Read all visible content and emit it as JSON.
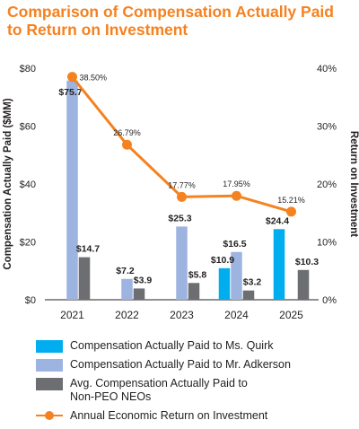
{
  "title_line1": "Comparison of Compensation Actually Paid",
  "title_line2": "to Return on Investment",
  "chart_data": {
    "type": "bar",
    "categories": [
      "2021",
      "2022",
      "2023",
      "2024",
      "2025"
    ],
    "ylabel": "Compensation Actually Paid ($MM)",
    "y2label": "Return on Investment",
    "ylim": [
      0,
      80
    ],
    "y_ticks": [
      "$0",
      "$20",
      "$40",
      "$60",
      "$80"
    ],
    "y2lim": [
      0,
      40
    ],
    "y2_ticks": [
      "0%",
      "10%",
      "20%",
      "30%",
      "40%"
    ],
    "grid": false,
    "legend_position": "bottom",
    "series": [
      {
        "name": "Compensation Actually Paid to Ms. Quirk",
        "kind": "bar",
        "color": "#00aeef",
        "values": [
          null,
          null,
          null,
          10.9,
          24.4
        ],
        "labels": [
          "",
          "",
          "",
          "$10.9",
          "$24.4"
        ]
      },
      {
        "name": "Compensation Actually Paid to Mr. Adkerson",
        "kind": "bar",
        "color": "#9db3e0",
        "values": [
          75.7,
          7.2,
          25.3,
          16.5,
          null
        ],
        "labels": [
          "$75.7",
          "$7.2",
          "$25.3",
          "$16.5",
          ""
        ]
      },
      {
        "name": "Avg. Compensation Actually Paid to\nNon-PEO NEOs",
        "kind": "bar",
        "color": "#6d6e71",
        "values": [
          14.7,
          3.9,
          5.8,
          3.2,
          10.3
        ],
        "labels": [
          "$14.7",
          "$3.9",
          "$5.8",
          "$3.2",
          "$10.3"
        ]
      },
      {
        "name": "Annual Economic Return on Investment",
        "kind": "line",
        "axis": "right",
        "color": "#f58220",
        "values": [
          38.5,
          26.79,
          17.77,
          17.95,
          15.21
        ],
        "labels": [
          "38.50%",
          "26.79%",
          "17.77%",
          "17.95%",
          "15.21%"
        ]
      }
    ]
  }
}
